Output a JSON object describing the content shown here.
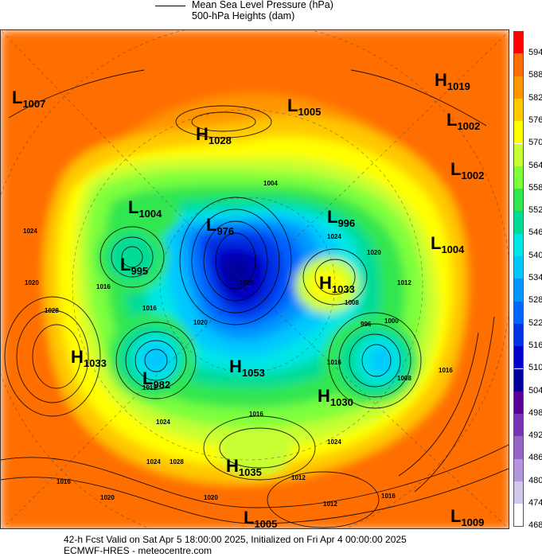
{
  "header": {
    "legend_line_label": "Mean Sea Level Pressure (hPa)",
    "legend_fill_label": "500-hPa Heights (dam)"
  },
  "colorbar": {
    "levels": [
      "594",
      "588",
      "582",
      "576",
      "570",
      "564",
      "558",
      "552",
      "546",
      "540",
      "534",
      "528",
      "522",
      "516",
      "510",
      "504",
      "498",
      "492",
      "486",
      "480",
      "474",
      "468"
    ],
    "colors": [
      "#ff0000",
      "#ff6e00",
      "#ff9600",
      "#ffc800",
      "#ffff00",
      "#c8ff32",
      "#7dff3c",
      "#32e650",
      "#00dc96",
      "#00e6e6",
      "#00c8ff",
      "#0096ff",
      "#0064ff",
      "#0032e6",
      "#0000c8",
      "#00009b",
      "#5a0096",
      "#7832b4",
      "#9664c8",
      "#b496dc",
      "#d2c8eb",
      "#ffffff"
    ]
  },
  "pressure_centers": [
    {
      "type": "L",
      "value": "1007"
    },
    {
      "type": "L",
      "value": "1005"
    },
    {
      "type": "H",
      "value": "1028"
    },
    {
      "type": "H",
      "value": "1019"
    },
    {
      "type": "L",
      "value": "1002"
    },
    {
      "type": "L",
      "value": "1002"
    },
    {
      "type": "L",
      "value": "1004"
    },
    {
      "type": "L",
      "value": "976"
    },
    {
      "type": "L",
      "value": "996"
    },
    {
      "type": "L",
      "value": "1004"
    },
    {
      "type": "L",
      "value": "995"
    },
    {
      "type": "H",
      "value": "1033"
    },
    {
      "type": "H",
      "value": "1033"
    },
    {
      "type": "L",
      "value": "982"
    },
    {
      "type": "H",
      "value": "1053"
    },
    {
      "type": "H",
      "value": "1030"
    },
    {
      "type": "H",
      "value": "1035"
    },
    {
      "type": "L",
      "value": "1005"
    },
    {
      "type": "L",
      "value": "1009"
    }
  ],
  "isobar_labels": [
    "1004",
    "1016",
    "1024",
    "1020",
    "1028",
    "1016",
    "1012",
    "1020",
    "1024",
    "1020",
    "1012",
    "1008",
    "1016",
    "1008",
    "1016",
    "1024",
    "1028",
    "1020",
    "1016",
    "1020",
    "1024",
    "1012",
    "1012",
    "1016",
    "996",
    "1000",
    "1020",
    "1016",
    "1024"
  ],
  "footer": {
    "line1": "42-h Fcst Valid on Sat Apr  5 18:00:00 2025, Initialized on Fri Apr  4 00:00:00 2025",
    "line2": "ECMWF-HRES  - meteocentre.com"
  }
}
